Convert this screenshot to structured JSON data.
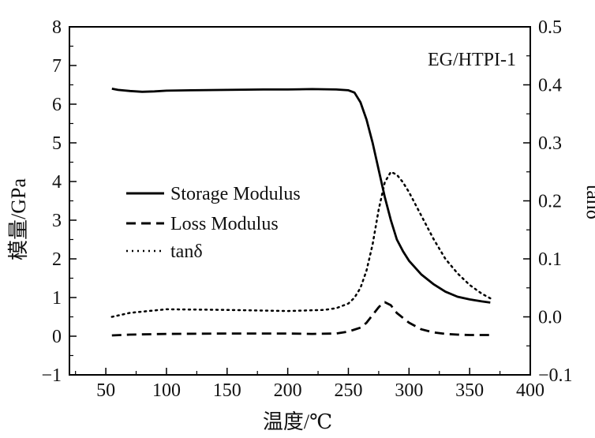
{
  "chart_data": {
    "type": "line",
    "annotation": "EG/HTPI-1",
    "xlabel": "温度/℃",
    "ylabel_left": "模量/GPa",
    "ylabel_right": "tanδ",
    "xlim": [
      20,
      400
    ],
    "ylim_left": [
      -1,
      8
    ],
    "ylim_right": [
      -0.1,
      0.5
    ],
    "x_ticks": [
      "50",
      "100",
      "150",
      "200",
      "250",
      "300",
      "350",
      "400"
    ],
    "y_left_ticks": [
      "−1",
      "0",
      "1",
      "2",
      "3",
      "4",
      "5",
      "6",
      "7",
      "8"
    ],
    "y_right_ticks": [
      "−0.1",
      "0.0",
      "0.1",
      "0.2",
      "0.3",
      "0.4",
      "0.5"
    ],
    "legend_position": "center-left",
    "grid": false,
    "series": [
      {
        "name": "Storage Modulus",
        "axis": "left",
        "style": "solid",
        "x": [
          55,
          60,
          70,
          80,
          90,
          100,
          120,
          150,
          180,
          200,
          220,
          240,
          250,
          255,
          260,
          265,
          270,
          275,
          280,
          285,
          290,
          295,
          300,
          310,
          320,
          330,
          340,
          350,
          360,
          367
        ],
        "y": [
          6.4,
          6.37,
          6.34,
          6.32,
          6.33,
          6.35,
          6.36,
          6.37,
          6.38,
          6.38,
          6.39,
          6.38,
          6.36,
          6.3,
          6.05,
          5.6,
          5.0,
          4.3,
          3.6,
          3.0,
          2.5,
          2.2,
          1.95,
          1.6,
          1.35,
          1.15,
          1.02,
          0.95,
          0.9,
          0.87
        ]
      },
      {
        "name": "Loss Modulus",
        "axis": "left",
        "style": "dashed",
        "x": [
          55,
          70,
          100,
          150,
          200,
          220,
          240,
          250,
          260,
          265,
          270,
          275,
          278,
          280,
          285,
          290,
          300,
          310,
          320,
          330,
          340,
          350,
          360,
          367
        ],
        "y": [
          0.02,
          0.04,
          0.06,
          0.07,
          0.07,
          0.06,
          0.07,
          0.12,
          0.22,
          0.35,
          0.55,
          0.75,
          0.85,
          0.88,
          0.8,
          0.6,
          0.35,
          0.18,
          0.1,
          0.06,
          0.04,
          0.03,
          0.03,
          0.03
        ]
      },
      {
        "name": "tanδ",
        "axis": "right",
        "style": "dotted",
        "x": [
          55,
          70,
          100,
          150,
          200,
          230,
          240,
          250,
          255,
          260,
          265,
          270,
          275,
          280,
          285,
          290,
          295,
          300,
          310,
          320,
          330,
          340,
          350,
          360,
          367
        ],
        "y": [
          0.0,
          0.007,
          0.013,
          0.012,
          0.01,
          0.012,
          0.015,
          0.023,
          0.033,
          0.05,
          0.08,
          0.125,
          0.185,
          0.232,
          0.25,
          0.245,
          0.232,
          0.215,
          0.175,
          0.135,
          0.1,
          0.075,
          0.055,
          0.04,
          0.032
        ]
      }
    ]
  }
}
